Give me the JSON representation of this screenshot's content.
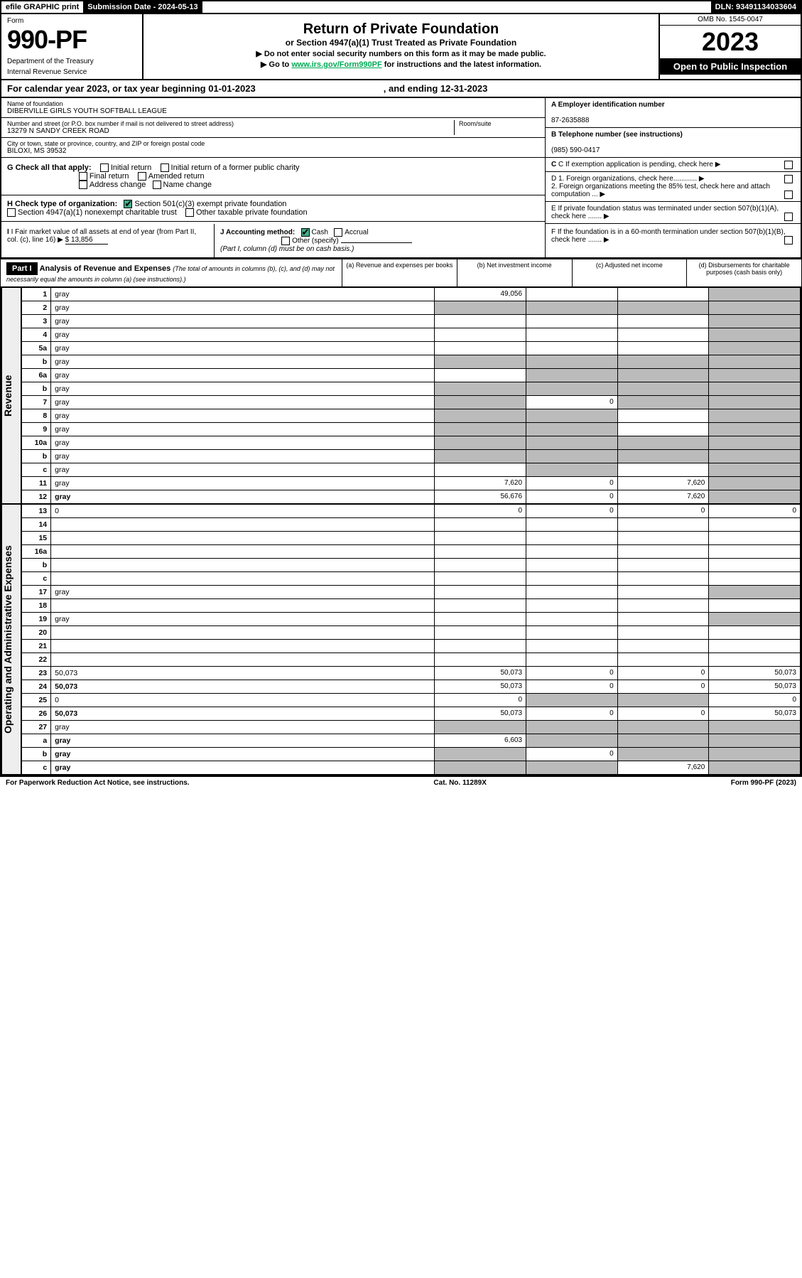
{
  "efile": {
    "label": "efile GRAPHIC print",
    "submission_label": "Submission Date - ",
    "submission_date": "2024-05-13",
    "dln_label": "DLN: ",
    "dln": "93491134033604"
  },
  "header": {
    "form_word": "Form",
    "form_number": "990-PF",
    "dept": "Department of the Treasury",
    "irs": "Internal Revenue Service",
    "title": "Return of Private Foundation",
    "subtitle": "or Section 4947(a)(1) Trust Treated as Private Foundation",
    "note1": "▶ Do not enter social security numbers on this form as it may be made public.",
    "note2_pre": "▶ Go to ",
    "note2_link": "www.irs.gov/Form990PF",
    "note2_post": " for instructions and the latest information.",
    "omb": "OMB No. 1545-0047",
    "year": "2023",
    "open": "Open to Public Inspection"
  },
  "cal": {
    "text": "For calendar year 2023, or tax year beginning 01-01-2023",
    "ending": ", and ending 12-31-2023"
  },
  "name": {
    "label": "Name of foundation",
    "value": "DIBERVILLE GIRLS YOUTH SOFTBALL LEAGUE"
  },
  "address": {
    "label": "Number and street (or P.O. box number if mail is not delivered to street address)",
    "street": "13279 N SANDY CREEK ROAD",
    "room_label": "Room/suite",
    "room": "",
    "city_label": "City or town, state or province, country, and ZIP or foreign postal code",
    "city": "BILOXI, MS  39532"
  },
  "right_info": {
    "a_label": "A Employer identification number",
    "ein": "87-2635888",
    "b_label": "B Telephone number (see instructions)",
    "phone": "(985) 590-0417",
    "c_label": "C If exemption application is pending, check here",
    "d1": "D 1. Foreign organizations, check here............",
    "d2": "2. Foreign organizations meeting the 85% test, check here and attach computation ...",
    "e": "E  If private foundation status was terminated under section 507(b)(1)(A), check here .......",
    "f": "F  If the foundation is in a 60-month termination under section 507(b)(1)(B), check here ......."
  },
  "g": {
    "label": "G Check all that apply:",
    "opts": [
      "Initial return",
      "Initial return of a former public charity",
      "Final return",
      "Amended return",
      "Address change",
      "Name change"
    ]
  },
  "h": {
    "label": "H Check type of organization:",
    "opt1": "Section 501(c)(3) exempt private foundation",
    "opt2": "Section 4947(a)(1) nonexempt charitable trust",
    "opt3": "Other taxable private foundation"
  },
  "i": {
    "label": "I Fair market value of all assets at end of year (from Part II, col. (c), line 16)",
    "value": "$  13,856"
  },
  "j": {
    "label": "J Accounting method:",
    "cash": "Cash",
    "accrual": "Accrual",
    "other": "Other (specify)",
    "note": "(Part I, column (d) must be on cash basis.)"
  },
  "part1": {
    "label": "Part I",
    "title": "Analysis of Revenue and Expenses",
    "note": "(The total of amounts in columns (b), (c), and (d) may not necessarily equal the amounts in column (a) (see instructions).)",
    "cols": {
      "a": "(a)   Revenue and expenses per books",
      "b": "(b)   Net investment income",
      "c": "(c)   Adjusted net income",
      "d": "(d)   Disbursements for charitable purposes (cash basis only)"
    }
  },
  "sides": {
    "revenue": "Revenue",
    "expenses": "Operating and Administrative Expenses"
  },
  "lines": [
    {
      "n": "1",
      "d": "gray",
      "a": "49,056",
      "b": "",
      "c": ""
    },
    {
      "n": "2",
      "d": "gray",
      "a": "gray",
      "b": "gray",
      "c": "gray"
    },
    {
      "n": "3",
      "d": "gray",
      "a": "",
      "b": "",
      "c": ""
    },
    {
      "n": "4",
      "d": "gray",
      "a": "",
      "b": "",
      "c": ""
    },
    {
      "n": "5a",
      "d": "gray",
      "a": "",
      "b": "",
      "c": ""
    },
    {
      "n": "b",
      "d": "gray",
      "a": "gray",
      "b": "gray",
      "c": "gray"
    },
    {
      "n": "6a",
      "d": "gray",
      "a": "",
      "b": "gray",
      "c": "gray"
    },
    {
      "n": "b",
      "d": "gray",
      "a": "gray",
      "b": "gray",
      "c": "gray"
    },
    {
      "n": "7",
      "d": "gray",
      "a": "gray",
      "b": "0",
      "c": "gray"
    },
    {
      "n": "8",
      "d": "gray",
      "a": "gray",
      "b": "gray",
      "c": ""
    },
    {
      "n": "9",
      "d": "gray",
      "a": "gray",
      "b": "gray",
      "c": ""
    },
    {
      "n": "10a",
      "d": "gray",
      "a": "gray",
      "b": "gray",
      "c": "gray"
    },
    {
      "n": "b",
      "d": "gray",
      "a": "gray",
      "b": "gray",
      "c": "gray"
    },
    {
      "n": "c",
      "d": "gray",
      "a": "",
      "b": "gray",
      "c": ""
    },
    {
      "n": "11",
      "d": "gray",
      "a": "7,620",
      "b": "0",
      "c": "7,620"
    },
    {
      "n": "12",
      "d": "gray",
      "a": "56,676",
      "b": "0",
      "c": "7,620",
      "bold": true
    }
  ],
  "exp_lines": [
    {
      "n": "13",
      "d": "0",
      "a": "0",
      "b": "0",
      "c": "0"
    },
    {
      "n": "14",
      "d": "",
      "a": "",
      "b": "",
      "c": ""
    },
    {
      "n": "15",
      "d": "",
      "a": "",
      "b": "",
      "c": ""
    },
    {
      "n": "16a",
      "d": "",
      "a": "",
      "b": "",
      "c": ""
    },
    {
      "n": "b",
      "d": "",
      "a": "",
      "b": "",
      "c": ""
    },
    {
      "n": "c",
      "d": "",
      "a": "",
      "b": "",
      "c": ""
    },
    {
      "n": "17",
      "d": "gray",
      "a": "",
      "b": "",
      "c": ""
    },
    {
      "n": "18",
      "d": "",
      "a": "",
      "b": "",
      "c": ""
    },
    {
      "n": "19",
      "d": "gray",
      "a": "",
      "b": "",
      "c": ""
    },
    {
      "n": "20",
      "d": "",
      "a": "",
      "b": "",
      "c": ""
    },
    {
      "n": "21",
      "d": "",
      "a": "",
      "b": "",
      "c": ""
    },
    {
      "n": "22",
      "d": "",
      "a": "",
      "b": "",
      "c": ""
    },
    {
      "n": "23",
      "d": "50,073",
      "a": "50,073",
      "b": "0",
      "c": "0"
    },
    {
      "n": "24",
      "d": "50,073",
      "a": "50,073",
      "b": "0",
      "c": "0",
      "bold": true
    },
    {
      "n": "25",
      "d": "0",
      "a": "0",
      "b": "gray",
      "c": "gray"
    },
    {
      "n": "26",
      "d": "50,073",
      "a": "50,073",
      "b": "0",
      "c": "0",
      "bold": true
    },
    {
      "n": "27",
      "d": "gray",
      "a": "gray",
      "b": "gray",
      "c": "gray"
    },
    {
      "n": "a",
      "d": "gray",
      "a": "6,603",
      "b": "gray",
      "c": "gray",
      "bold": true
    },
    {
      "n": "b",
      "d": "gray",
      "a": "gray",
      "b": "0",
      "c": "gray",
      "bold": true
    },
    {
      "n": "c",
      "d": "gray",
      "a": "gray",
      "b": "gray",
      "c": "7,620",
      "bold": true
    }
  ],
  "footer": {
    "left": "For Paperwork Reduction Act Notice, see instructions.",
    "mid": "Cat. No. 11289X",
    "right": "Form 990-PF (2023)"
  },
  "colors": {
    "check": "#4a8",
    "gray": "#bbb"
  }
}
